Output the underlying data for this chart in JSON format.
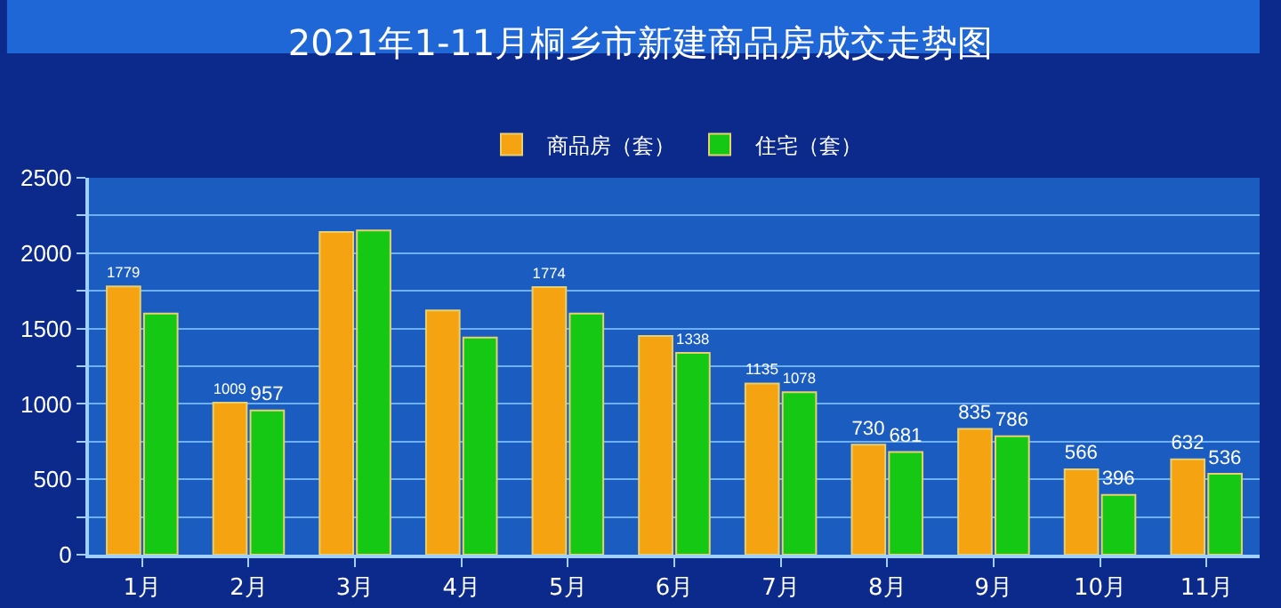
{
  "chart_data": {
    "type": "bar",
    "title": "2021年1-11月桐乡市新建商品房成交走势图",
    "categories": [
      "1月",
      "2月",
      "3月",
      "4月",
      "5月",
      "6月",
      "7月",
      "8月",
      "9月",
      "10月",
      "11月"
    ],
    "series": [
      {
        "name": "商品房（套）",
        "color": "#f5a310",
        "values": [
          1779,
          1009,
          2140,
          1620,
          1774,
          1450,
          1135,
          730,
          835,
          566,
          632
        ],
        "value_labels": [
          "1779",
          "1009",
          null,
          null,
          "1774",
          null,
          "1135",
          "730",
          "835",
          "566",
          "632"
        ]
      },
      {
        "name": "住宅（套）",
        "color": "#14c814",
        "values": [
          1600,
          957,
          2150,
          1440,
          1600,
          1338,
          1078,
          681,
          786,
          396,
          536
        ],
        "value_labels": [
          null,
          "957",
          null,
          null,
          null,
          "1338",
          "1078",
          "681",
          "786",
          "396",
          "536"
        ]
      }
    ],
    "ylim": [
      0,
      2500
    ],
    "yticks": [
      0,
      {
        "value": 250,
        "label": null
      },
      500,
      {
        "value": 750,
        "label": null
      },
      1000,
      {
        "value": 1250,
        "label": null
      },
      1500,
      {
        "value": 1750,
        "label": null
      },
      2000,
      {
        "value": 2250,
        "label": null
      },
      2500
    ],
    "grid": "y",
    "legend": "top"
  }
}
